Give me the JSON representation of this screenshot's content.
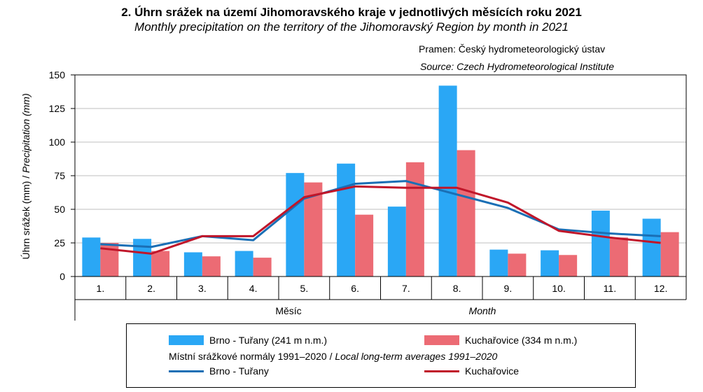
{
  "title": "2. Úhrn srážek na území Jihomoravského kraje v jednotlivých měsících roku 2021",
  "subtitle_pre": "Monthly precipitation on the territory of the",
  "subtitle_region": "Jihomoravský",
  "subtitle_post": "Region by month in 2021",
  "source_cs": "Pramen: Český hydrometeorologický ústav",
  "source_en": "Source: Czech Hydrometeorological Institute",
  "colors": {
    "brno_bar": "#2AA7F5",
    "kuch_bar": "#EC6B74",
    "brno_line": "#1A6FB5",
    "kuch_line": "#C0162A",
    "grid": "#BFBFBF"
  },
  "legend": {
    "bar1": "Brno - Tuřany (241 m n.m.)",
    "bar2": "Kuchařovice (334 m n.m.)",
    "note_cs": "Místní srážkové normály 1991–2020 /",
    "note_en": "Local long-term averages 1991–2020",
    "line1": "Brno - Tuřany",
    "line2": "Kuchařovice"
  },
  "chart_data": {
    "type": "bar",
    "title": "2. Úhrn srážek na území Jihomoravského kraje v jednotlivých měsících roku 2021",
    "categories": [
      "1.",
      "2.",
      "3.",
      "4.",
      "5.",
      "6.",
      "7.",
      "8.",
      "9.",
      "10.",
      "11.",
      "12."
    ],
    "xlabel_cs": "Měsíc",
    "xlabel_en": "Month",
    "ylabel_cs": "Úhrn srážek (mm) /",
    "ylabel_en": "Precipitation (mm)",
    "ylim": [
      0,
      150
    ],
    "yticks": [
      0,
      25,
      50,
      75,
      100,
      125,
      150
    ],
    "grid": true,
    "legend_position": "bottom",
    "series": [
      {
        "name": "Brno - Tuřany (241 m n.m.)",
        "kind": "bar",
        "values": [
          29,
          28,
          18,
          19,
          77,
          84,
          52,
          142,
          20,
          19.5,
          49,
          43
        ]
      },
      {
        "name": "Kuchařovice (334 m n.m.)",
        "kind": "bar",
        "values": [
          25,
          19,
          15,
          14,
          70,
          46,
          85,
          94,
          17,
          16,
          29,
          33
        ]
      },
      {
        "name": "Brno - Tuřany",
        "kind": "line",
        "values": [
          24,
          22,
          30,
          27,
          58,
          69,
          71,
          61,
          51,
          35,
          32,
          30
        ]
      },
      {
        "name": "Kuchařovice",
        "kind": "line",
        "values": [
          21,
          17,
          30,
          30,
          59,
          67,
          66,
          66,
          55,
          34,
          29,
          25
        ]
      }
    ]
  }
}
